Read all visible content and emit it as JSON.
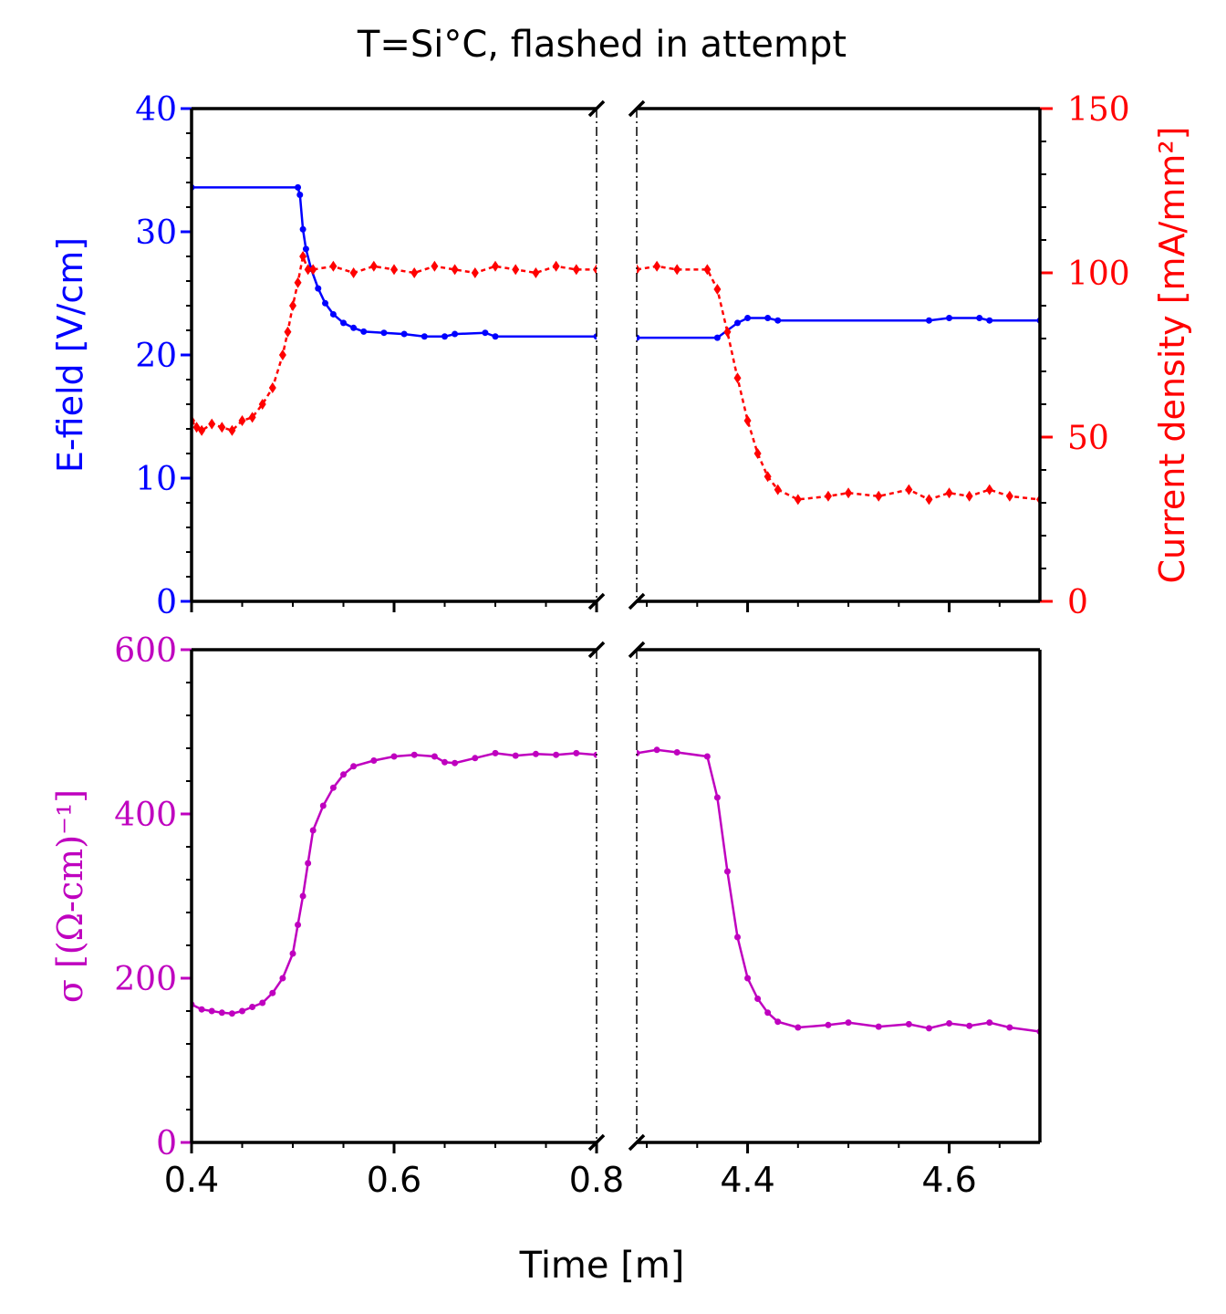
{
  "title": "T=Si°C, flashed in attempt",
  "xlabel": "Time [m]",
  "colors": {
    "efield": "#0000ff",
    "current": "#ff0000",
    "sigma": "#bf00bf",
    "axes": "#000000"
  },
  "chart_data": [
    {
      "type": "line",
      "panel": "top",
      "broken_x_axis": true,
      "x_segments": [
        [
          0.4,
          0.8
        ],
        [
          4.29,
          4.69
        ]
      ],
      "xlabel": "Time [m]",
      "ylabel": "E-field [V/cm]",
      "ylim": [
        0,
        40
      ],
      "y_ticks": [
        "0",
        "10",
        "20",
        "30",
        "40"
      ],
      "y2label": "Current density [mA/mm²]",
      "y2lim": [
        0,
        150
      ],
      "y2_ticks": [
        "0",
        "50",
        "100",
        "150"
      ],
      "grid": false,
      "series": [
        {
          "axis": "left",
          "marker": "dot",
          "linestyle": "solid",
          "points": [
            [
              0.4,
              33.6
            ],
            [
              0.505,
              33.6
            ],
            [
              0.507,
              33.0
            ],
            [
              0.51,
              30.2
            ],
            [
              0.513,
              28.6
            ],
            [
              0.518,
              27.0
            ],
            [
              0.525,
              25.4
            ],
            [
              0.532,
              24.2
            ],
            [
              0.54,
              23.3
            ],
            [
              0.55,
              22.6
            ],
            [
              0.56,
              22.2
            ],
            [
              0.57,
              21.9
            ],
            [
              0.59,
              21.8
            ],
            [
              0.61,
              21.7
            ],
            [
              0.63,
              21.5
            ],
            [
              0.65,
              21.5
            ],
            [
              0.66,
              21.7
            ],
            [
              0.69,
              21.8
            ],
            [
              0.7,
              21.5
            ],
            [
              0.8,
              21.5
            ],
            [
              4.29,
              21.4
            ],
            [
              4.37,
              21.4
            ],
            [
              4.39,
              22.6
            ],
            [
              4.4,
              23.0
            ],
            [
              4.42,
              23.0
            ],
            [
              4.43,
              22.8
            ],
            [
              4.58,
              22.8
            ],
            [
              4.6,
              23.0
            ],
            [
              4.63,
              23.0
            ],
            [
              4.64,
              22.8
            ],
            [
              4.69,
              22.8
            ]
          ]
        },
        {
          "axis": "right",
          "marker": "diamond",
          "linestyle": "dashed",
          "points": [
            [
              0.4,
              55
            ],
            [
              0.405,
              53
            ],
            [
              0.41,
              52
            ],
            [
              0.42,
              54
            ],
            [
              0.43,
              53
            ],
            [
              0.44,
              52
            ],
            [
              0.45,
              55
            ],
            [
              0.46,
              56
            ],
            [
              0.47,
              60
            ],
            [
              0.48,
              65
            ],
            [
              0.49,
              75
            ],
            [
              0.495,
              82
            ],
            [
              0.5,
              90
            ],
            [
              0.505,
              97
            ],
            [
              0.51,
              105
            ],
            [
              0.515,
              101
            ],
            [
              0.52,
              101
            ],
            [
              0.54,
              102
            ],
            [
              0.56,
              100
            ],
            [
              0.58,
              102
            ],
            [
              0.6,
              101
            ],
            [
              0.62,
              100
            ],
            [
              0.64,
              102
            ],
            [
              0.66,
              101
            ],
            [
              0.68,
              100
            ],
            [
              0.7,
              102
            ],
            [
              0.72,
              101
            ],
            [
              0.74,
              100
            ],
            [
              0.76,
              102
            ],
            [
              0.78,
              101
            ],
            [
              0.8,
              101
            ],
            [
              4.29,
              101
            ],
            [
              4.31,
              102
            ],
            [
              4.33,
              101
            ],
            [
              4.36,
              101
            ],
            [
              4.37,
              95
            ],
            [
              4.38,
              82
            ],
            [
              4.39,
              68
            ],
            [
              4.4,
              55
            ],
            [
              4.41,
              45
            ],
            [
              4.42,
              38
            ],
            [
              4.43,
              34
            ],
            [
              4.45,
              31
            ],
            [
              4.48,
              32
            ],
            [
              4.5,
              33
            ],
            [
              4.53,
              32
            ],
            [
              4.56,
              34
            ],
            [
              4.58,
              31
            ],
            [
              4.6,
              33
            ],
            [
              4.62,
              32
            ],
            [
              4.64,
              34
            ],
            [
              4.66,
              32
            ],
            [
              4.69,
              31
            ]
          ]
        }
      ]
    },
    {
      "type": "line",
      "panel": "bottom",
      "broken_x_axis": true,
      "x_segments": [
        [
          0.4,
          0.8
        ],
        [
          4.29,
          4.69
        ]
      ],
      "x_ticks_left": [
        "0.4",
        "0.6",
        "0.8"
      ],
      "x_ticks_right": [
        "4.4",
        "4.6"
      ],
      "xlabel": "Time [m]",
      "ylabel": "σ [(Ω-cm)⁻¹]",
      "ylim": [
        0,
        600
      ],
      "y_ticks": [
        "0",
        "200",
        "400",
        "600"
      ],
      "grid": false,
      "series": [
        {
          "axis": "left",
          "marker": "dot",
          "linestyle": "solid",
          "points": [
            [
              0.4,
              168
            ],
            [
              0.41,
              162
            ],
            [
              0.42,
              160
            ],
            [
              0.43,
              158
            ],
            [
              0.44,
              157
            ],
            [
              0.45,
              160
            ],
            [
              0.46,
              165
            ],
            [
              0.47,
              170
            ],
            [
              0.48,
              182
            ],
            [
              0.49,
              200
            ],
            [
              0.5,
              230
            ],
            [
              0.505,
              265
            ],
            [
              0.51,
              300
            ],
            [
              0.515,
              340
            ],
            [
              0.52,
              380
            ],
            [
              0.53,
              410
            ],
            [
              0.54,
              432
            ],
            [
              0.55,
              448
            ],
            [
              0.56,
              458
            ],
            [
              0.58,
              465
            ],
            [
              0.6,
              470
            ],
            [
              0.62,
              472
            ],
            [
              0.64,
              470
            ],
            [
              0.65,
              463
            ],
            [
              0.66,
              462
            ],
            [
              0.68,
              468
            ],
            [
              0.7,
              474
            ],
            [
              0.72,
              471
            ],
            [
              0.74,
              473
            ],
            [
              0.76,
              472
            ],
            [
              0.78,
              474
            ],
            [
              0.8,
              472
            ],
            [
              4.29,
              474
            ],
            [
              4.31,
              478
            ],
            [
              4.33,
              475
            ],
            [
              4.36,
              470
            ],
            [
              4.37,
              420
            ],
            [
              4.38,
              330
            ],
            [
              4.39,
              250
            ],
            [
              4.4,
              200
            ],
            [
              4.41,
              175
            ],
            [
              4.42,
              158
            ],
            [
              4.43,
              147
            ],
            [
              4.45,
              140
            ],
            [
              4.48,
              143
            ],
            [
              4.5,
              146
            ],
            [
              4.53,
              141
            ],
            [
              4.56,
              144
            ],
            [
              4.58,
              139
            ],
            [
              4.6,
              145
            ],
            [
              4.62,
              142
            ],
            [
              4.64,
              146
            ],
            [
              4.66,
              140
            ],
            [
              4.69,
              135
            ]
          ]
        }
      ]
    }
  ]
}
